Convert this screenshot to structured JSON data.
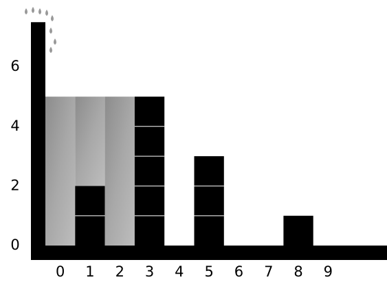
{
  "chart_data": {
    "type": "bar",
    "categories": [
      "0",
      "1",
      "2",
      "3",
      "4",
      "5",
      "6",
      "7",
      "8",
      "9"
    ],
    "values": [
      0,
      2,
      0,
      5,
      0,
      3,
      0,
      0,
      1,
      0
    ],
    "water": [
      5,
      3,
      5,
      0,
      0,
      0,
      0,
      0,
      0,
      0
    ],
    "wall_height": 7.5,
    "color": "#000000",
    "water_color": "#9a9a9a",
    "ylim": [
      0,
      8
    ],
    "yticks": [
      0,
      2,
      4,
      6
    ]
  }
}
